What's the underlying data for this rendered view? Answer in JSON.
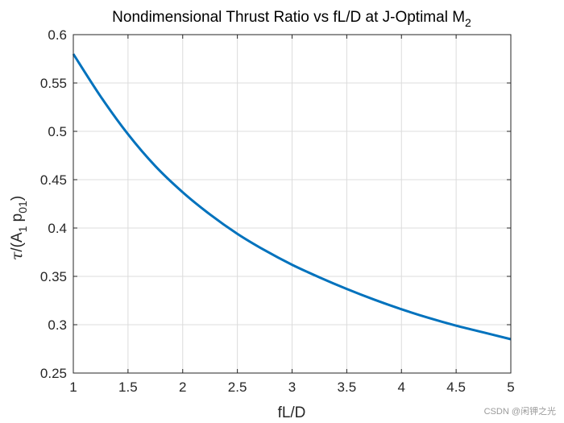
{
  "chart_data": {
    "type": "line",
    "title": "Nondimensional Thrust Ratio vs fL/D at J-Optimal M",
    "title_subscript": "2",
    "xlabel": "fL/D",
    "ylabel": {
      "greek": "τ",
      "part1": "/(A",
      "sub1": "1",
      "part2": " p",
      "sub2": "01",
      "part3": ")"
    },
    "xlim": [
      1,
      5
    ],
    "ylim": [
      0.25,
      0.6
    ],
    "xticks": [
      1,
      1.5,
      2,
      2.5,
      3,
      3.5,
      4,
      4.5,
      5
    ],
    "xtick_labels": [
      "1",
      "1.5",
      "2",
      "2.5",
      "3",
      "3.5",
      "4",
      "4.5",
      "5"
    ],
    "yticks": [
      0.25,
      0.3,
      0.35,
      0.4,
      0.45,
      0.5,
      0.55,
      0.6
    ],
    "ytick_labels": [
      "0.25",
      "0.3",
      "0.35",
      "0.4",
      "0.45",
      "0.5",
      "0.55",
      "0.6"
    ],
    "grid": true,
    "line_color": "#0072BD",
    "series": [
      {
        "x": [
          1.0,
          1.25,
          1.5,
          1.75,
          2.0,
          2.25,
          2.5,
          2.75,
          3.0,
          3.25,
          3.5,
          3.75,
          4.0,
          4.25,
          4.5,
          4.75,
          5.0
        ],
        "values": [
          0.58,
          0.536,
          0.497,
          0.464,
          0.437,
          0.414,
          0.394,
          0.377,
          0.362,
          0.349,
          0.337,
          0.326,
          0.316,
          0.307,
          0.299,
          0.292,
          0.285
        ]
      }
    ]
  },
  "watermark": "CSDN @闲钾之光"
}
